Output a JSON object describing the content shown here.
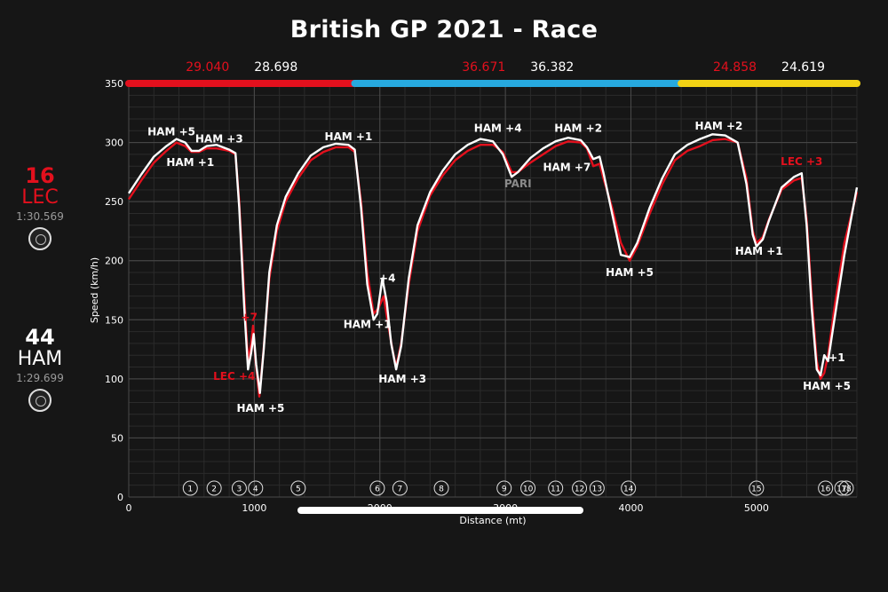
{
  "title": "British GP 2021 - Race",
  "drivers": [
    {
      "number": "16",
      "code": "LEC",
      "lap_time": "1:30.569",
      "color": "#e3101d"
    },
    {
      "number": "44",
      "code": "HAM",
      "lap_time": "1:29.699",
      "color": "#ffffff"
    }
  ],
  "chart_data": {
    "type": "line",
    "xlabel": "Distance (mt)",
    "ylabel": "Speed (km/h)",
    "xlim": [
      0,
      5800
    ],
    "ylim": [
      0,
      350
    ],
    "x_ticks": [
      0,
      1000,
      2000,
      3000,
      4000,
      5000
    ],
    "y_ticks": [
      0,
      50,
      100,
      150,
      200,
      250,
      300,
      350
    ],
    "grid": true,
    "sectors": [
      {
        "start": 0,
        "end": 1800,
        "color": "#e3101d",
        "lec_time": "29.040",
        "ham_time": "28.698"
      },
      {
        "start": 1800,
        "end": 4400,
        "color": "#27a9df",
        "lec_time": "36.671",
        "ham_time": "36.382"
      },
      {
        "start": 4400,
        "end": 5800,
        "color": "#f2d214",
        "lec_time": "24.858",
        "ham_time": "24.619"
      }
    ],
    "series": [
      {
        "name": "LEC",
        "color": "#e3101d",
        "points": [
          [
            0,
            252
          ],
          [
            100,
            268
          ],
          [
            200,
            283
          ],
          [
            300,
            293
          ],
          [
            380,
            300
          ],
          [
            450,
            297
          ],
          [
            500,
            292
          ],
          [
            560,
            292
          ],
          [
            620,
            295
          ],
          [
            700,
            295
          ],
          [
            800,
            293
          ],
          [
            850,
            290
          ],
          [
            880,
            250
          ],
          [
            920,
            170
          ],
          [
            950,
            115
          ],
          [
            975,
            130
          ],
          [
            990,
            145
          ],
          [
            1010,
            115
          ],
          [
            1040,
            85
          ],
          [
            1070,
            120
          ],
          [
            1120,
            185
          ],
          [
            1180,
            225
          ],
          [
            1250,
            250
          ],
          [
            1350,
            270
          ],
          [
            1450,
            285
          ],
          [
            1550,
            292
          ],
          [
            1650,
            296
          ],
          [
            1750,
            296
          ],
          [
            1800,
            292
          ],
          [
            1850,
            250
          ],
          [
            1900,
            190
          ],
          [
            1950,
            155
          ],
          [
            1990,
            160
          ],
          [
            2030,
            170
          ],
          [
            2060,
            150
          ],
          [
            2100,
            125
          ],
          [
            2130,
            110
          ],
          [
            2170,
            130
          ],
          [
            2230,
            180
          ],
          [
            2300,
            225
          ],
          [
            2400,
            255
          ],
          [
            2500,
            272
          ],
          [
            2600,
            285
          ],
          [
            2700,
            293
          ],
          [
            2800,
            298
          ],
          [
            2900,
            298
          ],
          [
            2980,
            292
          ],
          [
            3050,
            275
          ],
          [
            3100,
            275
          ],
          [
            3200,
            283
          ],
          [
            3300,
            290
          ],
          [
            3400,
            297
          ],
          [
            3500,
            301
          ],
          [
            3600,
            300
          ],
          [
            3650,
            295
          ],
          [
            3700,
            280
          ],
          [
            3750,
            282
          ],
          [
            3780,
            270
          ],
          [
            3850,
            245
          ],
          [
            3920,
            215
          ],
          [
            3990,
            200
          ],
          [
            4050,
            212
          ],
          [
            4150,
            240
          ],
          [
            4250,
            265
          ],
          [
            4350,
            285
          ],
          [
            4450,
            293
          ],
          [
            4550,
            297
          ],
          [
            4650,
            302
          ],
          [
            4750,
            303
          ],
          [
            4850,
            300
          ],
          [
            4920,
            270
          ],
          [
            4970,
            225
          ],
          [
            5000,
            215
          ],
          [
            5050,
            220
          ],
          [
            5100,
            235
          ],
          [
            5200,
            260
          ],
          [
            5300,
            268
          ],
          [
            5360,
            270
          ],
          [
            5400,
            235
          ],
          [
            5440,
            170
          ],
          [
            5480,
            115
          ],
          [
            5510,
            100
          ],
          [
            5540,
            105
          ],
          [
            5570,
            120
          ],
          [
            5620,
            160
          ],
          [
            5700,
            215
          ],
          [
            5800,
            258
          ]
        ]
      },
      {
        "name": "HAM",
        "color": "#ffffff",
        "points": [
          [
            0,
            257
          ],
          [
            100,
            273
          ],
          [
            200,
            288
          ],
          [
            300,
            297
          ],
          [
            380,
            303
          ],
          [
            450,
            300
          ],
          [
            500,
            293
          ],
          [
            560,
            293
          ],
          [
            620,
            297
          ],
          [
            700,
            298
          ],
          [
            800,
            294
          ],
          [
            850,
            291
          ],
          [
            880,
            245
          ],
          [
            920,
            160
          ],
          [
            950,
            108
          ],
          [
            975,
            122
          ],
          [
            995,
            138
          ],
          [
            1015,
            112
          ],
          [
            1045,
            88
          ],
          [
            1075,
            125
          ],
          [
            1120,
            190
          ],
          [
            1180,
            230
          ],
          [
            1250,
            254
          ],
          [
            1350,
            274
          ],
          [
            1450,
            289
          ],
          [
            1550,
            296
          ],
          [
            1650,
            299
          ],
          [
            1750,
            298
          ],
          [
            1800,
            294
          ],
          [
            1850,
            245
          ],
          [
            1900,
            180
          ],
          [
            1950,
            150
          ],
          [
            1980,
            155
          ],
          [
            2020,
            185
          ],
          [
            2055,
            165
          ],
          [
            2090,
            130
          ],
          [
            2130,
            108
          ],
          [
            2170,
            128
          ],
          [
            2230,
            185
          ],
          [
            2300,
            230
          ],
          [
            2400,
            258
          ],
          [
            2500,
            276
          ],
          [
            2600,
            290
          ],
          [
            2700,
            298
          ],
          [
            2800,
            303
          ],
          [
            2900,
            301
          ],
          [
            2980,
            290
          ],
          [
            3050,
            271
          ],
          [
            3100,
            275
          ],
          [
            3200,
            287
          ],
          [
            3300,
            295
          ],
          [
            3400,
            301
          ],
          [
            3500,
            304
          ],
          [
            3600,
            302
          ],
          [
            3650,
            296
          ],
          [
            3700,
            286
          ],
          [
            3750,
            288
          ],
          [
            3780,
            275
          ],
          [
            3850,
            240
          ],
          [
            3920,
            205
          ],
          [
            3990,
            203
          ],
          [
            4050,
            215
          ],
          [
            4150,
            245
          ],
          [
            4250,
            270
          ],
          [
            4350,
            290
          ],
          [
            4450,
            298
          ],
          [
            4550,
            303
          ],
          [
            4650,
            307
          ],
          [
            4750,
            306
          ],
          [
            4850,
            300
          ],
          [
            4920,
            265
          ],
          [
            4970,
            222
          ],
          [
            5000,
            212
          ],
          [
            5050,
            218
          ],
          [
            5100,
            234
          ],
          [
            5200,
            262
          ],
          [
            5300,
            271
          ],
          [
            5360,
            274
          ],
          [
            5400,
            230
          ],
          [
            5440,
            160
          ],
          [
            5480,
            108
          ],
          [
            5510,
            103
          ],
          [
            5540,
            120
          ],
          [
            5570,
            115
          ],
          [
            5620,
            150
          ],
          [
            5700,
            205
          ],
          [
            5800,
            262
          ]
        ]
      }
    ],
    "annotations": [
      {
        "text": "HAM +5",
        "x": 340,
        "y": 306,
        "color": "#ffffff"
      },
      {
        "text": "HAM +3",
        "x": 720,
        "y": 300,
        "color": "#ffffff"
      },
      {
        "text": "HAM +1",
        "x": 490,
        "y": 280,
        "color": "#ffffff"
      },
      {
        "text": "+7",
        "x": 960,
        "y": 149,
        "color": "#e3101d"
      },
      {
        "text": "LEC +4",
        "x": 840,
        "y": 99,
        "color": "#e3101d"
      },
      {
        "text": "HAM +5",
        "x": 1050,
        "y": 72,
        "color": "#ffffff"
      },
      {
        "text": "HAM +1",
        "x": 1750,
        "y": 302,
        "color": "#ffffff"
      },
      {
        "text": "+4",
        "x": 2060,
        "y": 182,
        "color": "#ffffff"
      },
      {
        "text": "HAM +1",
        "x": 1900,
        "y": 143,
        "color": "#ffffff"
      },
      {
        "text": "HAM +3",
        "x": 2180,
        "y": 97,
        "color": "#ffffff"
      },
      {
        "text": "HAM +4",
        "x": 2940,
        "y": 309,
        "color": "#ffffff"
      },
      {
        "text": "PARI",
        "x": 3100,
        "y": 262,
        "color": "#8a8a8a"
      },
      {
        "text": "HAM +2",
        "x": 3580,
        "y": 309,
        "color": "#ffffff"
      },
      {
        "text": "HAM +7",
        "x": 3490,
        "y": 276,
        "color": "#ffffff"
      },
      {
        "text": "HAM +5",
        "x": 3990,
        "y": 187,
        "color": "#ffffff"
      },
      {
        "text": "HAM +2",
        "x": 4700,
        "y": 311,
        "color": "#ffffff"
      },
      {
        "text": "LEC +3",
        "x": 5360,
        "y": 281,
        "color": "#e3101d"
      },
      {
        "text": "HAM +1",
        "x": 5020,
        "y": 205,
        "color": "#ffffff"
      },
      {
        "text": "+1",
        "x": 5640,
        "y": 115,
        "color": "#ffffff"
      },
      {
        "text": "HAM +5",
        "x": 5560,
        "y": 91,
        "color": "#ffffff"
      }
    ],
    "corners": [
      {
        "label": "1",
        "x": 490
      },
      {
        "label": "2",
        "x": 680
      },
      {
        "label": "3",
        "x": 880
      },
      {
        "label": "4",
        "x": 1010
      },
      {
        "label": "5",
        "x": 1350
      },
      {
        "label": "6",
        "x": 1980
      },
      {
        "label": "7",
        "x": 2160
      },
      {
        "label": "8",
        "x": 2490
      },
      {
        "label": "9",
        "x": 2990
      },
      {
        "label": "10",
        "x": 3180
      },
      {
        "label": "11",
        "x": 3400
      },
      {
        "label": "12",
        "x": 3590
      },
      {
        "label": "13",
        "x": 3730
      },
      {
        "label": "14",
        "x": 3980
      },
      {
        "label": "15",
        "x": 5000
      },
      {
        "label": "16",
        "x": 5550
      },
      {
        "label": "17",
        "x": 5680
      },
      {
        "label": "18",
        "x": 5810
      }
    ]
  }
}
